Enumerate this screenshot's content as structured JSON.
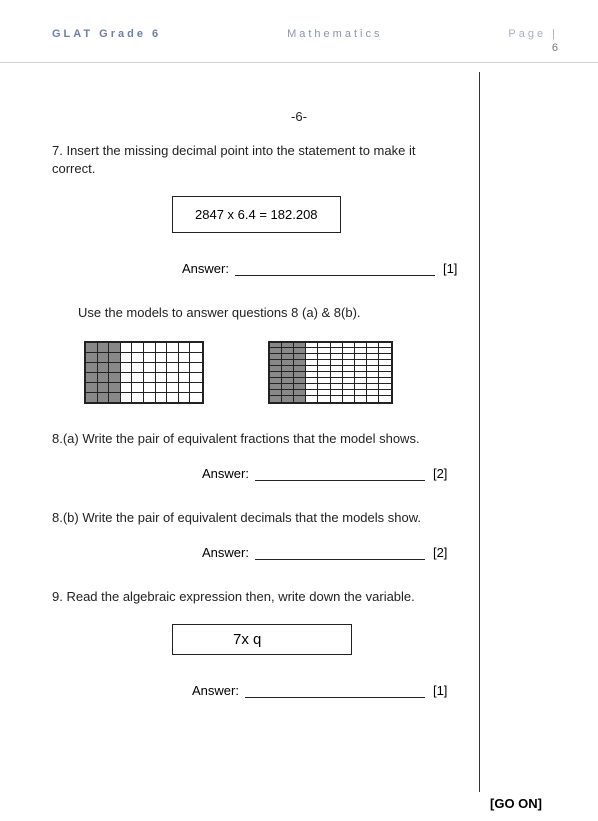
{
  "header": {
    "left": "GLAT Grade 6",
    "center": "Mathematics",
    "right_label": "Page |",
    "page_number": "6"
  },
  "foot_page": "-6-",
  "q7": {
    "text": "7. Insert the missing decimal point into the statement to make it correct.",
    "equation": "2847  x 6.4  = 182.208",
    "answer_label": "Answer:",
    "marks": "[1]"
  },
  "models_intro": "Use the models to answer questions 8 (a) & 8(b).",
  "model1": {
    "columns": 10,
    "rows": 6,
    "shaded_columns": 3,
    "shaded_color": "#888888",
    "border_color": "#222222"
  },
  "model2": {
    "columns": 10,
    "rows": 10,
    "shaded_columns": 3,
    "shaded_color": "#888888",
    "border_color": "#222222"
  },
  "q8a": {
    "text": "8.(a) Write the pair of equivalent fractions that the model shows.",
    "answer_label": "Answer:",
    "marks": "[2]"
  },
  "q8b": {
    "text": "8.(b) Write the pair of equivalent decimals that the models show.",
    "answer_label": "Answer:",
    "marks": "[2]"
  },
  "q9": {
    "text": "9.  Read the algebraic expression then, write down the variable.",
    "expression": "7x q",
    "answer_label": "Answer:",
    "marks": "[1]"
  },
  "go_on": "[GO ON]"
}
